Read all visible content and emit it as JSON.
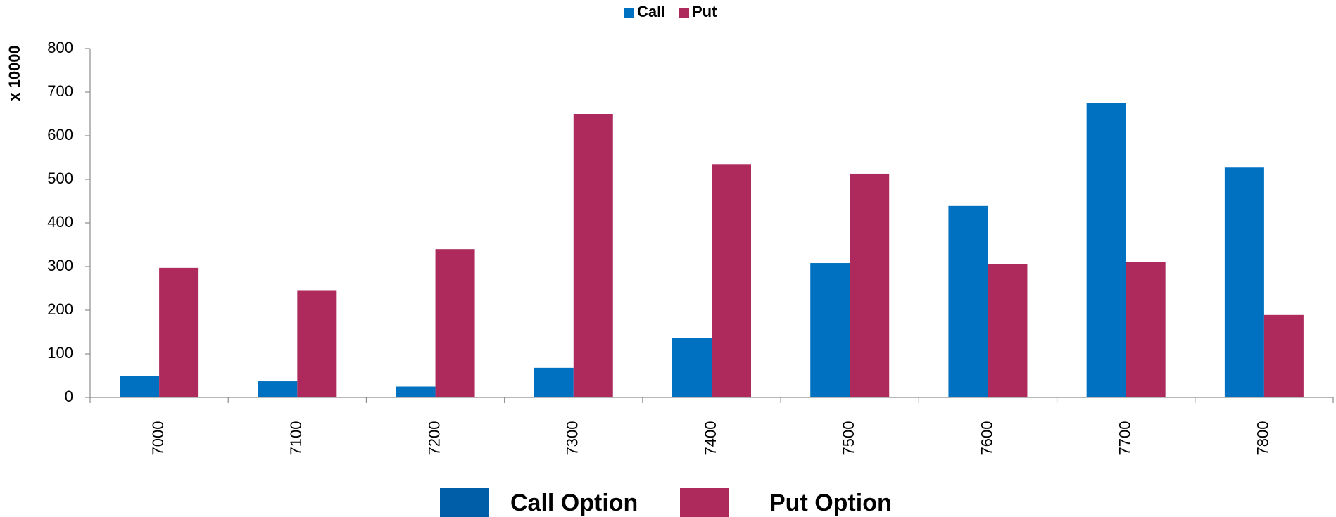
{
  "chart_data": {
    "type": "bar",
    "y_label": "x 10000",
    "categories": [
      "7000",
      "7100",
      "7200",
      "7300",
      "7400",
      "7500",
      "7600",
      "7700",
      "7800"
    ],
    "series": [
      {
        "name": "Call",
        "color": "#0070c0",
        "values": [
          49,
          37,
          25,
          68,
          137,
          308,
          439,
          675,
          527
        ]
      },
      {
        "name": "Put",
        "color": "#ae2a5c",
        "values": [
          297,
          246,
          340,
          650,
          535,
          513,
          306,
          310,
          189
        ]
      }
    ],
    "ylim": [
      0,
      800
    ],
    "yticks": [
      0,
      100,
      200,
      300,
      400,
      500,
      600,
      700,
      800
    ],
    "grid": false,
    "legend": "top",
    "bottom_legend": [
      {
        "name": "Call Option",
        "color": "#005ea8"
      },
      {
        "name": "Put Option",
        "color": "#ae2a5c"
      }
    ]
  }
}
